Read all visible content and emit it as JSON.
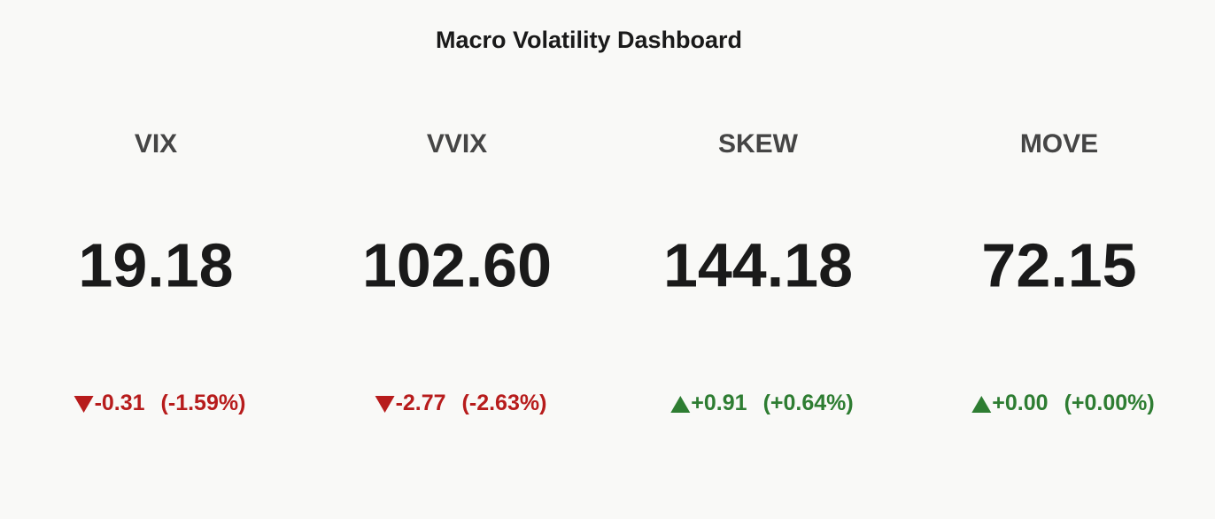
{
  "chart_data": {
    "type": "indicator",
    "title": "Macro Volatility Dashboard",
    "categories": [
      "VIX",
      "VVIX",
      "SKEW",
      "MOVE"
    ],
    "values": [
      19.18,
      102.6,
      144.18,
      72.15
    ],
    "value_labels": [
      "19.18",
      "102.60",
      "144.18",
      "72.15"
    ],
    "deltas": [
      -0.31,
      -2.77,
      0.91,
      0
    ],
    "delta_labels": [
      "-0.31",
      "-2.77",
      "+0.91",
      "+0.00"
    ],
    "delta_pcts": [
      -1.59,
      -2.63,
      0.64,
      0
    ],
    "delta_pct_labels": [
      "(-1.59%)",
      "(-2.63%)",
      "(+0.64%)",
      "(+0.00%)"
    ],
    "increasing_color": "#2e7d32",
    "decreasing_color": "#b71c1c"
  }
}
